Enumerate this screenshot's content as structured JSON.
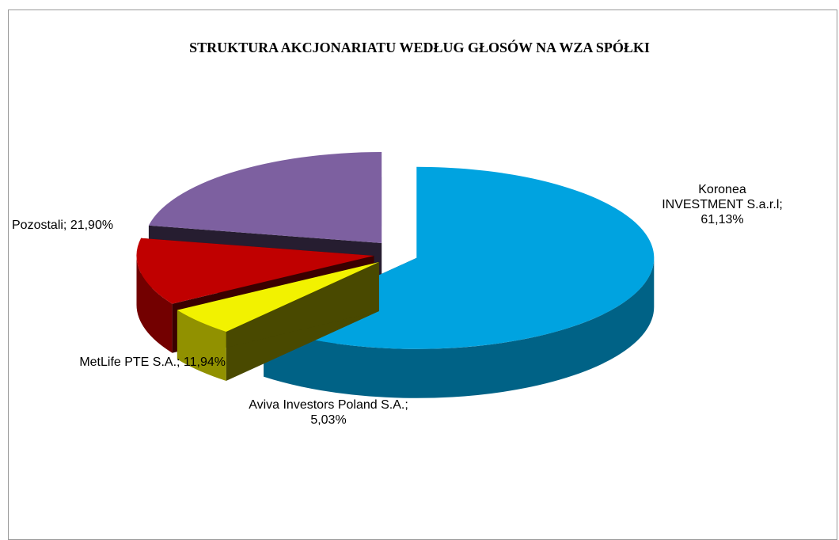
{
  "chart_data": {
    "type": "pie",
    "title": "STRUKTURA AKCJONARIATU WEDŁUG GŁOSÓW NA WZA SPÓŁKI",
    "values": [
      61.13,
      5.03,
      11.94,
      21.9
    ],
    "value_labels": [
      "Koronea INVESTMENT S.a.r.l; 61,13%",
      "Aviva Investors Poland S.A.; 5,03%",
      "MetLife PTE S.A.; 11,94%",
      "Pozostali; 21,90%"
    ],
    "colors": [
      "#00a3e0",
      "#f2f200",
      "#c00000",
      "#7d60a0"
    ]
  }
}
